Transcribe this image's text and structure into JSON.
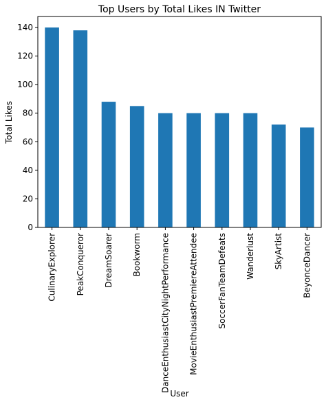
{
  "chart_data": {
    "type": "bar",
    "title": "Top Users by Total Likes IN Twitter",
    "x_label": "User",
    "y_label": "Total Likes",
    "categories": [
      "CulinaryExplorer",
      "PeakConqueror",
      "DreamSoarer",
      "Bookworm",
      "DanceEnthusiastCityNightPerformance",
      "MovieEnthusiastPremiereAttendee",
      "SoccerFanTeamDefeats",
      "Wanderlust",
      "SkyArtist",
      "BeyonceDancer"
    ],
    "values": [
      140,
      138,
      88,
      85,
      80,
      80,
      80,
      80,
      72,
      70
    ],
    "color": "#1f77b4",
    "ylim": [
      0,
      147.7
    ],
    "yticks": [
      0,
      20,
      40,
      60,
      80,
      100,
      120,
      140
    ],
    "grid": false
  }
}
